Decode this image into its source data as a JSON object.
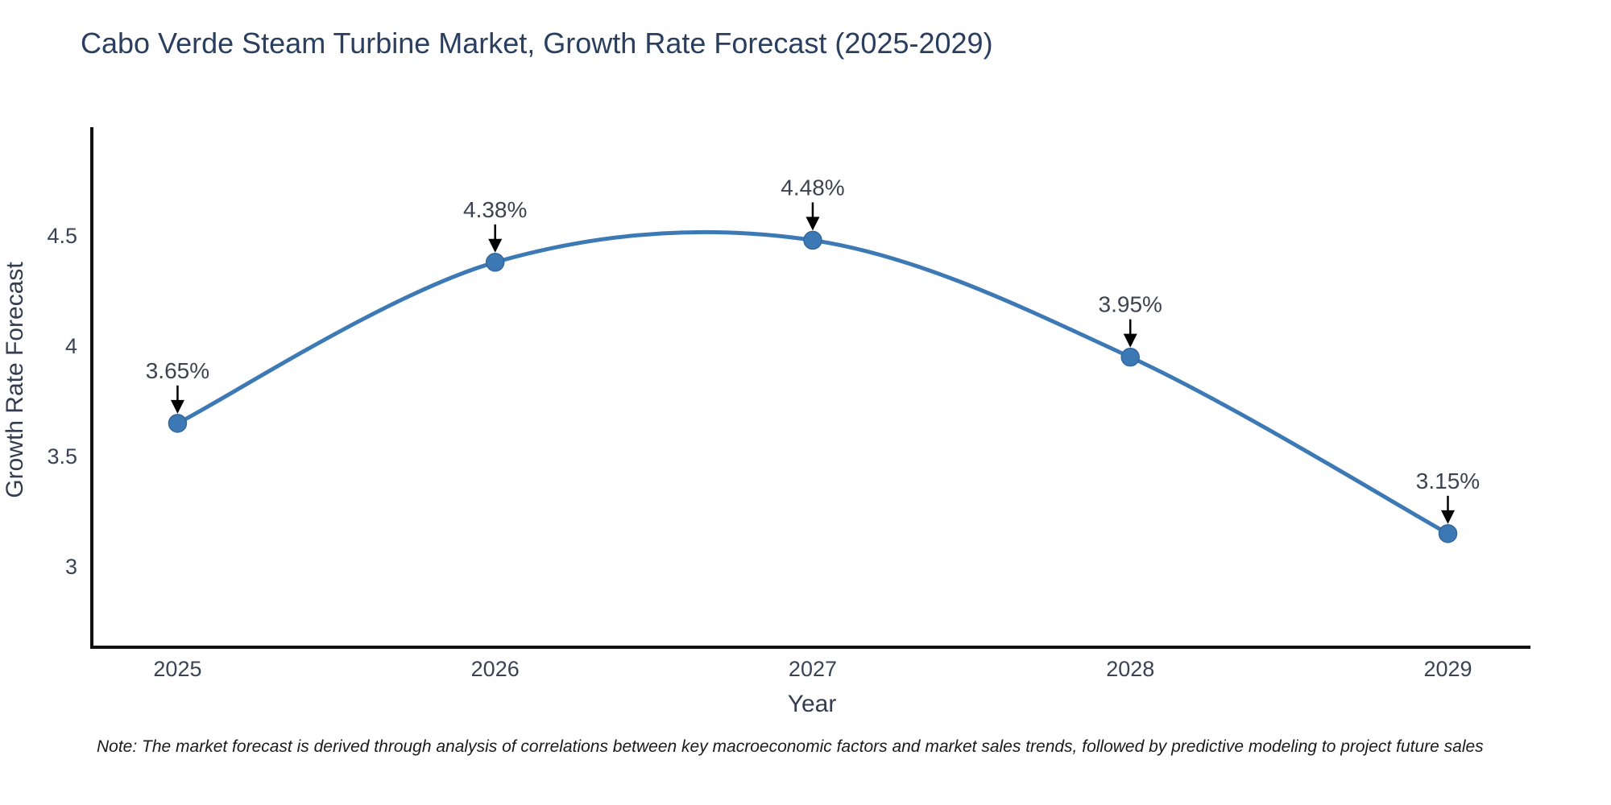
{
  "note": "Note: The market forecast is derived through analysis of correlations between key macroeconomic factors and market sales trends, followed by predictive modeling to project future sales",
  "chart_data": {
    "type": "line",
    "title": "Cabo Verde Steam Turbine Market, Growth Rate Forecast (2025-2029)",
    "xlabel": "Year",
    "ylabel": "Growth Rate Forecast",
    "x": [
      2025,
      2026,
      2027,
      2028,
      2029
    ],
    "values": [
      3.65,
      4.38,
      4.48,
      3.95,
      3.15
    ],
    "point_labels": [
      "3.65%",
      "4.38%",
      "4.48%",
      "3.95%",
      "3.15%"
    ],
    "x_ticks": [
      "2025",
      "2026",
      "2027",
      "2028",
      "2029"
    ],
    "y_ticks": [
      "3",
      "3.5",
      "4",
      "4.5"
    ],
    "y_tick_values": [
      3,
      3.5,
      4,
      4.5
    ],
    "xlim": [
      2024.73,
      2029.26
    ],
    "ylim": [
      2.635,
      4.985
    ],
    "line_shape": "spline",
    "grid": false,
    "legend": "none",
    "colors": {
      "line": "#3d7ab5",
      "marker_fill": "#3c78b4",
      "marker_edge": "#33689e",
      "annotation_arrow": "#000000",
      "title_text": "#2a3f5f",
      "axis_text": "#333d4f"
    }
  }
}
